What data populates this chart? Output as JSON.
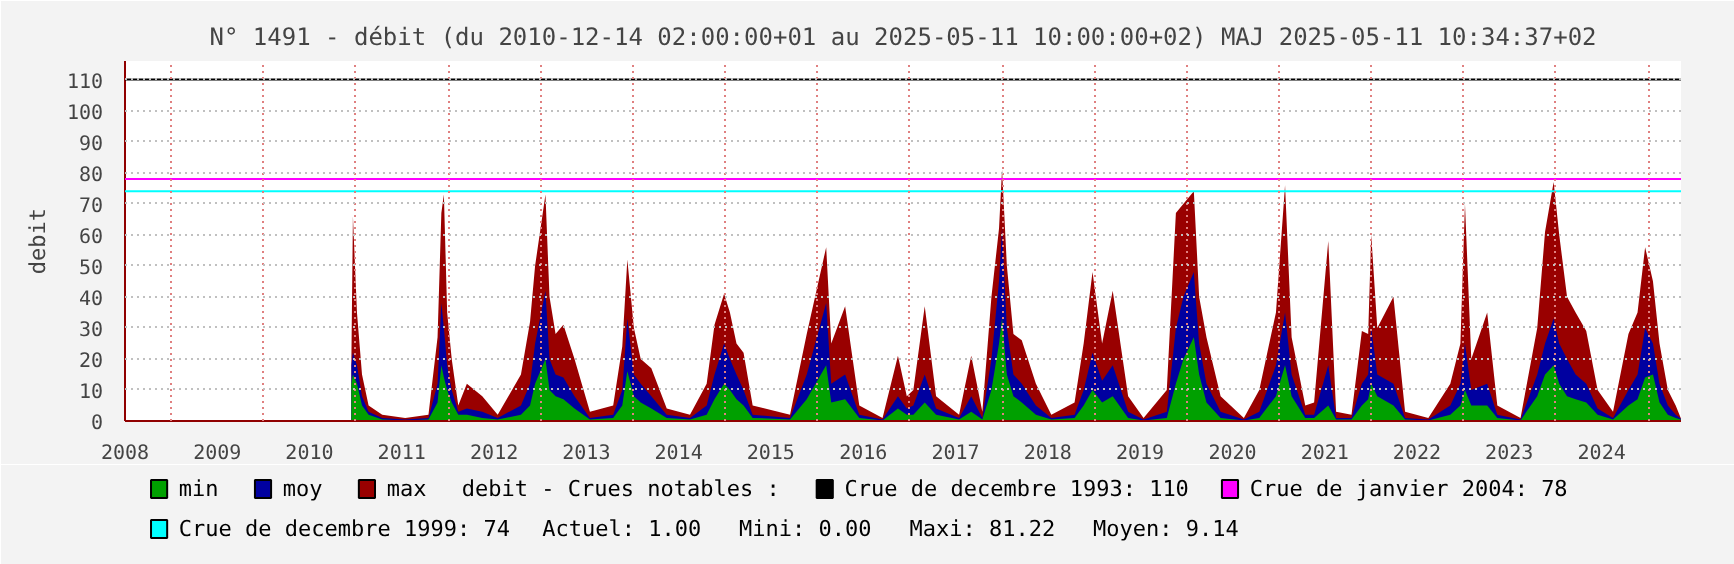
{
  "chart_data": {
    "type": "area",
    "title": "N° 1491 - débit (du 2010-12-14 02:00:00+01 au 2025-05-11 10:00:00+02) MAJ 2025-05-11 10:34:37+02",
    "ylabel": "debit",
    "x": [
      "2010-12-14",
      "2010-12-20",
      "2011-01-05",
      "2011-01-25",
      "2011-02-20",
      "2011-04-15",
      "2011-07-15",
      "2011-10-15",
      "2011-11-20",
      "2011-12-05",
      "2011-12-15",
      "2011-12-28",
      "2012-01-15",
      "2012-02-10",
      "2012-03-15",
      "2012-05-15",
      "2012-07-15",
      "2012-10-15",
      "2012-11-20",
      "2012-12-10",
      "2013-01-20",
      "2013-02-05",
      "2013-03-01",
      "2013-04-01",
      "2013-05-15",
      "2013-07-15",
      "2013-10-15",
      "2013-11-20",
      "2013-12-10",
      "2014-01-05",
      "2014-02-01",
      "2014-03-15",
      "2014-05-15",
      "2014-08-15",
      "2014-10-20",
      "2014-11-20",
      "2014-12-28",
      "2015-01-20",
      "2015-02-15",
      "2015-03-15",
      "2015-04-20",
      "2015-09-15",
      "2015-11-20",
      "2016-02-05",
      "2016-02-25",
      "2016-04-20",
      "2016-06-15",
      "2016-09-15",
      "2016-11-15",
      "2016-12-20",
      "2017-01-15",
      "2017-03-01",
      "2017-04-15",
      "2017-07-15",
      "2017-09-01",
      "2017-10-15",
      "2017-11-20",
      "2017-12-20",
      "2018-01-01",
      "2018-01-20",
      "2018-02-15",
      "2018-03-20",
      "2018-05-15",
      "2018-07-15",
      "2018-10-15",
      "2018-11-20",
      "2018-12-25",
      "2019-02-01",
      "2019-03-15",
      "2019-05-15",
      "2019-07-15",
      "2019-10-15",
      "2019-11-20",
      "2019-12-20",
      "2020-01-30",
      "2020-02-20",
      "2020-03-20",
      "2020-05-15",
      "2020-08-15",
      "2020-10-15",
      "2020-12-20",
      "2021-01-25",
      "2021-02-20",
      "2021-04-15",
      "2021-05-20",
      "2021-07-15",
      "2021-08-15",
      "2021-10-15",
      "2021-11-25",
      "2021-12-20",
      "2022-01-01",
      "2022-01-25",
      "2022-03-30",
      "2022-05-15",
      "2022-08-15",
      "2022-11-10",
      "2022-12-20",
      "2023-01-07",
      "2023-02-01",
      "2023-04-05",
      "2023-05-15",
      "2023-08-15",
      "2023-10-20",
      "2023-11-20",
      "2023-12-24",
      "2024-01-15",
      "2024-02-15",
      "2024-03-20",
      "2024-05-01",
      "2024-06-15",
      "2024-08-15",
      "2024-10-15",
      "2024-11-20",
      "2024-12-20",
      "2025-01-20",
      "2025-02-15",
      "2025-03-20",
      "2025-04-20",
      "2025-05-10"
    ],
    "series": [
      {
        "name": "max",
        "color": "#990000",
        "values": [
          20,
          66,
          35,
          15,
          5,
          2,
          1,
          2,
          27,
          67,
          73,
          35,
          20,
          5,
          12,
          8,
          2,
          15,
          32,
          50,
          73,
          40,
          28,
          31,
          20,
          3,
          5,
          24,
          52,
          30,
          20,
          17,
          4,
          2,
          12,
          31,
          41,
          35,
          25,
          22,
          5,
          2,
          28,
          56,
          25,
          37,
          5,
          1,
          21,
          8,
          10,
          37,
          8,
          2,
          21,
          3,
          40,
          62,
          81,
          50,
          28,
          26,
          12,
          2,
          6,
          25,
          48,
          25,
          42,
          8,
          1,
          10,
          67,
          70,
          74,
          40,
          27,
          8,
          1,
          10,
          35,
          76,
          27,
          5,
          6,
          58,
          3,
          2,
          29,
          28,
          60,
          30,
          40,
          3,
          1,
          12,
          25,
          70,
          20,
          35,
          5,
          1,
          30,
          61,
          77,
          60,
          40,
          35,
          29,
          10,
          3,
          28,
          35,
          56,
          45,
          25,
          10,
          5,
          1
        ]
      },
      {
        "name": "moy",
        "color": "#0000a0",
        "values": [
          18,
          22,
          18,
          8,
          3,
          1,
          0.5,
          1,
          12,
          38,
          30,
          18,
          10,
          3,
          4,
          3,
          1,
          5,
          12,
          25,
          42,
          20,
          15,
          14,
          8,
          1,
          2,
          10,
          33,
          15,
          12,
          8,
          2,
          1,
          5,
          15,
          25,
          20,
          15,
          10,
          2,
          1,
          15,
          38,
          12,
          15,
          2,
          0.5,
          8,
          4,
          5,
          15,
          4,
          1,
          8,
          1,
          20,
          45,
          62,
          30,
          15,
          12,
          5,
          1,
          2,
          10,
          22,
          13,
          18,
          3,
          0.5,
          3,
          30,
          40,
          48,
          25,
          12,
          3,
          0.5,
          3,
          18,
          35,
          15,
          2,
          2,
          18,
          1,
          1,
          12,
          15,
          30,
          15,
          12,
          1,
          0.5,
          5,
          12,
          25,
          10,
          12,
          2,
          0.5,
          15,
          25,
          33,
          25,
          20,
          15,
          12,
          4,
          1,
          10,
          15,
          30,
          25,
          12,
          5,
          2,
          0.8
        ]
      },
      {
        "name": "min",
        "color": "#00a000",
        "values": [
          12,
          15,
          12,
          5,
          2,
          0.5,
          0.2,
          0.5,
          6,
          18,
          14,
          10,
          6,
          2,
          2,
          1,
          0.5,
          2,
          5,
          12,
          20,
          10,
          8,
          7,
          4,
          0.5,
          1,
          5,
          16,
          8,
          6,
          4,
          1,
          0.5,
          2,
          7,
          12,
          10,
          7,
          5,
          1,
          0.5,
          7,
          18,
          6,
          7,
          1,
          0.2,
          4,
          2,
          2,
          6,
          2,
          0.5,
          3,
          0.5,
          10,
          25,
          33,
          15,
          8,
          6,
          2,
          0.5,
          1,
          5,
          10,
          6,
          8,
          1,
          0.2,
          1,
          12,
          20,
          27,
          15,
          6,
          1,
          0.2,
          1,
          8,
          18,
          8,
          1,
          1,
          5,
          0.5,
          0.5,
          5,
          7,
          12,
          8,
          5,
          0.5,
          0.2,
          2,
          5,
          10,
          5,
          5,
          1,
          0.2,
          8,
          15,
          18,
          12,
          8,
          7,
          6,
          2,
          0.5,
          5,
          7,
          14,
          15,
          6,
          2,
          1,
          0.5
        ]
      }
    ],
    "xlim": [
      "2008-07-01",
      "2025-05-11"
    ],
    "xticks": [
      {
        "value": "2008-07-01",
        "label": "2008"
      },
      {
        "value": "2009-07-01",
        "label": "2009"
      },
      {
        "value": "2010-07-01",
        "label": "2010"
      },
      {
        "value": "2011-07-01",
        "label": "2011"
      },
      {
        "value": "2012-07-01",
        "label": "2012"
      },
      {
        "value": "2013-07-01",
        "label": "2013"
      },
      {
        "value": "2014-07-01",
        "label": "2014"
      },
      {
        "value": "2015-07-01",
        "label": "2015"
      },
      {
        "value": "2016-07-01",
        "label": "2016"
      },
      {
        "value": "2017-07-01",
        "label": "2017"
      },
      {
        "value": "2018-07-01",
        "label": "2018"
      },
      {
        "value": "2019-07-01",
        "label": "2019"
      },
      {
        "value": "2020-07-01",
        "label": "2020"
      },
      {
        "value": "2021-07-01",
        "label": "2021"
      },
      {
        "value": "2022-07-01",
        "label": "2022"
      },
      {
        "value": "2023-07-01",
        "label": "2023"
      },
      {
        "value": "2024-07-01",
        "label": "2024"
      },
      {
        "value": "2009-01-01",
        "label": null
      },
      {
        "value": "2010-01-01",
        "label": null
      },
      {
        "value": "2011-01-01",
        "label": null
      },
      {
        "value": "2012-01-01",
        "label": null
      },
      {
        "value": "2013-01-01",
        "label": null
      },
      {
        "value": "2014-01-01",
        "label": null
      },
      {
        "value": "2015-01-01",
        "label": null
      },
      {
        "value": "2016-01-01",
        "label": null
      },
      {
        "value": "2017-01-01",
        "label": null
      },
      {
        "value": "2018-01-01",
        "label": null
      },
      {
        "value": "2019-01-01",
        "label": null
      },
      {
        "value": "2020-01-01",
        "label": null
      },
      {
        "value": "2021-01-01",
        "label": null
      },
      {
        "value": "2022-01-01",
        "label": null
      },
      {
        "value": "2023-01-01",
        "label": null
      },
      {
        "value": "2024-01-01",
        "label": null
      },
      {
        "value": "2025-01-01",
        "label": null
      }
    ],
    "ylim": [
      0,
      116
    ],
    "yticks": [
      0,
      10,
      20,
      30,
      40,
      50,
      60,
      70,
      80,
      90,
      100,
      110
    ],
    "grid": true,
    "legend": "bottom",
    "ref_lines": [
      {
        "axis": "y",
        "value": 110,
        "label": "Crue de decembre 1993: 110",
        "color": "#000000"
      },
      {
        "axis": "y",
        "value": 78,
        "label": "Crue de janvier 2004: 78",
        "color": "#ff00ff"
      },
      {
        "axis": "y",
        "value": 74,
        "label": "Crue de decembre 1999: 74",
        "color": "#00ffff"
      }
    ],
    "annotations": [
      "debit - Crues notables :",
      "Actuel: 1.00",
      "Mini: 0.00",
      "Maxi: 81.22",
      "Moyen: 9.14"
    ]
  }
}
